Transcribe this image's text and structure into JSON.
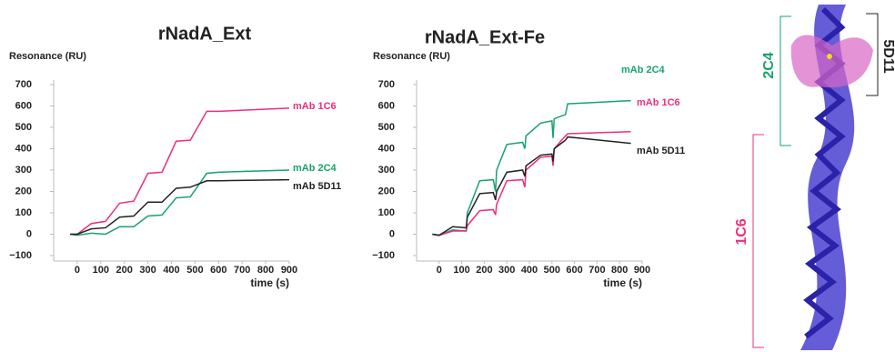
{
  "chart_data": [
    {
      "type": "line",
      "title": "rNadA_Ext",
      "ylabel": "Resonance (RU)",
      "xlabel": "time (s)",
      "x": [
        -30,
        0,
        60,
        120,
        180,
        240,
        300,
        360,
        420,
        480,
        550,
        600,
        900
      ],
      "series": [
        {
          "name": "mAb 1C6",
          "color": "#ec2f7f",
          "values": [
            0,
            0,
            50,
            60,
            145,
            155,
            285,
            290,
            435,
            440,
            575,
            575,
            590
          ]
        },
        {
          "name": "mAb 2C4",
          "color": "#16a36b",
          "values": [
            0,
            -5,
            5,
            0,
            35,
            35,
            85,
            90,
            170,
            175,
            285,
            290,
            300
          ]
        },
        {
          "name": "mAb 5D11",
          "color": "#222222",
          "values": [
            0,
            0,
            25,
            30,
            80,
            85,
            150,
            150,
            215,
            220,
            250,
            250,
            255
          ]
        }
      ],
      "xlim": [
        -100,
        900
      ],
      "ylim": [
        -100,
        700
      ],
      "xticks": [
        0,
        100,
        200,
        300,
        400,
        500,
        600,
        700,
        800,
        900
      ],
      "yticks": [
        {
          "value": -100,
          "label": "−100"
        },
        0,
        100,
        200,
        300,
        400,
        500,
        600,
        700
      ],
      "grid": false
    },
    {
      "type": "line",
      "title": "rNadA_Ext-Fe",
      "ylabel": "Resonance (RU)",
      "xlabel": "time (s)",
      "x": [
        -30,
        0,
        60,
        120,
        125,
        180,
        240,
        250,
        255,
        300,
        370,
        380,
        385,
        450,
        500,
        505,
        510,
        560,
        570,
        850
      ],
      "series": [
        {
          "name": "mAb 2C4",
          "color": "#16a36b",
          "values": [
            0,
            -5,
            20,
            15,
            100,
            250,
            255,
            200,
            300,
            420,
            430,
            400,
            460,
            520,
            530,
            450,
            540,
            560,
            610,
            625
          ]
        },
        {
          "name": "mAb 1C6",
          "color": "#ec2f7f",
          "values": [
            0,
            -5,
            15,
            15,
            40,
            110,
            115,
            90,
            140,
            250,
            255,
            220,
            300,
            360,
            365,
            320,
            400,
            460,
            470,
            480
          ]
        },
        {
          "name": "mAb 5D11",
          "color": "#222222",
          "values": [
            0,
            -5,
            35,
            30,
            80,
            190,
            195,
            160,
            200,
            290,
            300,
            270,
            320,
            370,
            375,
            340,
            400,
            440,
            455,
            425
          ]
        }
      ],
      "xlim": [
        -100,
        900
      ],
      "ylim": [
        -100,
        700
      ],
      "xticks": [
        0,
        100,
        200,
        300,
        400,
        500,
        600,
        700,
        800,
        900
      ],
      "yticks": [
        {
          "value": -100,
          "label": "−100"
        },
        0,
        100,
        200,
        300,
        400,
        500,
        600,
        700
      ],
      "grid": false
    }
  ],
  "structure": {
    "labels": [
      "2C4",
      "5D11",
      "1C6"
    ]
  }
}
